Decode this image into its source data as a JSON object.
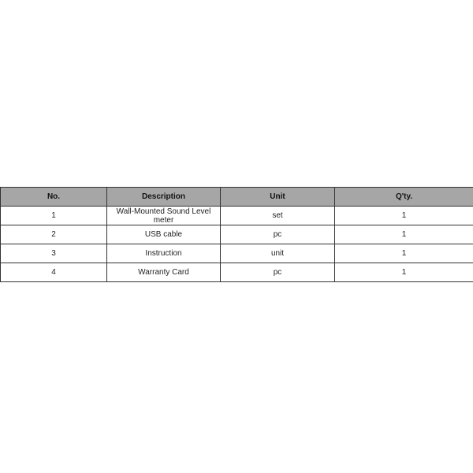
{
  "table": {
    "headers": [
      "No.",
      "Description",
      "Unit",
      "Q'ty."
    ],
    "rows": [
      [
        "1",
        "Wall-Mounted Sound Level meter",
        "set",
        "1"
      ],
      [
        "2",
        "USB cable",
        "pc",
        "1"
      ],
      [
        "3",
        "Instruction",
        "unit",
        "1"
      ],
      [
        "4",
        "Warranty Card",
        "pc",
        "1"
      ]
    ],
    "header_bg": "#a6a6a6"
  }
}
